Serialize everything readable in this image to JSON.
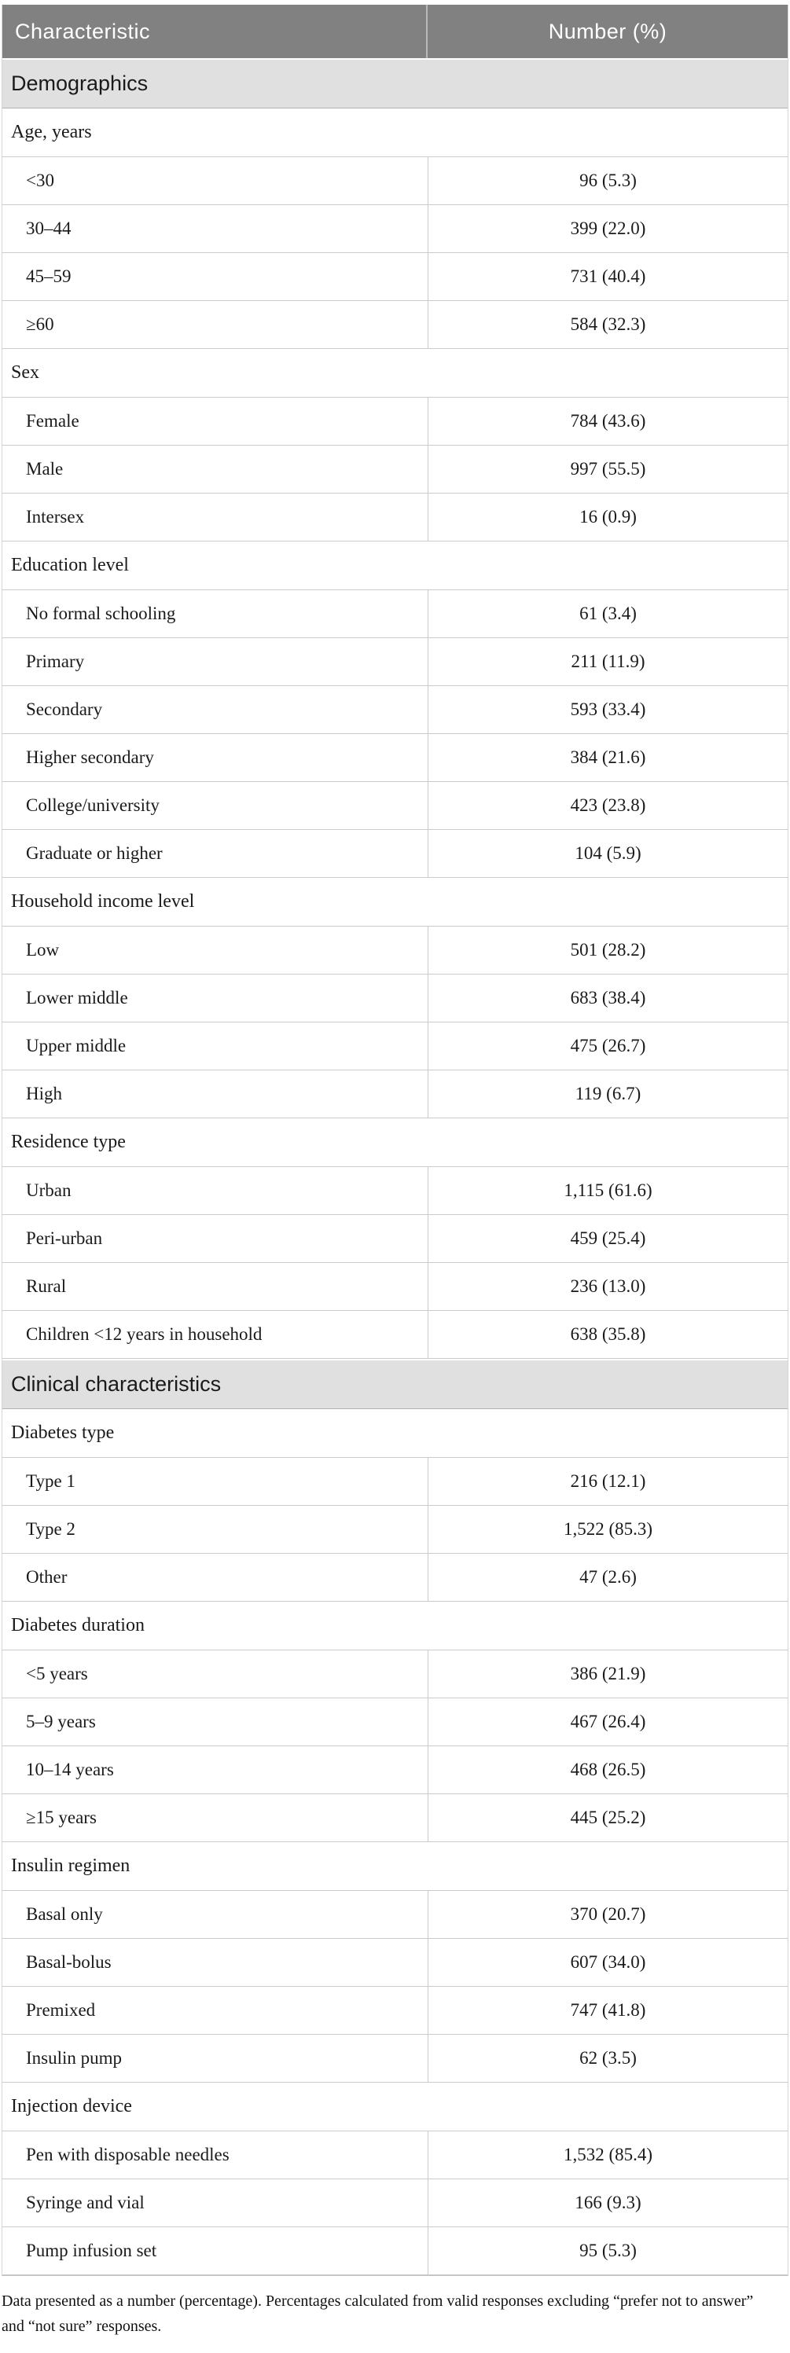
{
  "colors": {
    "header_bg": "#818181",
    "header_text": "#ffffff",
    "section_bg": "#e0e0e0",
    "body_text": "#1a1a1a",
    "border": "#cbcbcb"
  },
  "table": {
    "columns": [
      "Characteristic",
      "Number (%)"
    ],
    "sections": [
      {
        "title": "Demographics",
        "groups": [
          {
            "label": "Age, years",
            "rows": [
              {
                "label": "<30",
                "value": "96 (5.3)"
              },
              {
                "label": "30–44",
                "value": "399 (22.0)"
              },
              {
                "label": "45–59",
                "value": "731 (40.4)"
              },
              {
                "label": "≥60",
                "value": "584 (32.3)"
              }
            ]
          },
          {
            "label": "Sex",
            "rows": [
              {
                "label": "Female",
                "value": "784 (43.6)"
              },
              {
                "label": "Male",
                "value": "997 (55.5)"
              },
              {
                "label": "Intersex",
                "value": "16 (0.9)"
              }
            ]
          },
          {
            "label": "Education level",
            "rows": [
              {
                "label": "No formal schooling",
                "value": "61 (3.4)"
              },
              {
                "label": "Primary",
                "value": "211 (11.9)"
              },
              {
                "label": "Secondary",
                "value": "593 (33.4)"
              },
              {
                "label": "Higher secondary",
                "value": "384 (21.6)"
              },
              {
                "label": "College/university",
                "value": "423 (23.8)"
              },
              {
                "label": "Graduate or higher",
                "value": "104 (5.9)"
              }
            ]
          },
          {
            "label": "Household income level",
            "rows": [
              {
                "label": "Low",
                "value": "501 (28.2)"
              },
              {
                "label": "Lower middle",
                "value": "683 (38.4)"
              },
              {
                "label": "Upper middle",
                "value": "475 (26.7)"
              },
              {
                "label": "High",
                "value": "119 (6.7)"
              }
            ]
          },
          {
            "label": "Residence type",
            "rows": [
              {
                "label": "Urban",
                "value": "1,115 (61.6)"
              },
              {
                "label": "Peri-urban",
                "value": "459 (25.4)"
              },
              {
                "label": "Rural",
                "value": "236 (13.0)"
              },
              {
                "label": "Children <12 years in household",
                "value": "638 (35.8)"
              }
            ]
          }
        ]
      },
      {
        "title": "Clinical characteristics",
        "groups": [
          {
            "label": "Diabetes type",
            "rows": [
              {
                "label": "Type 1",
                "value": "216 (12.1)"
              },
              {
                "label": "Type 2",
                "value": "1,522 (85.3)"
              },
              {
                "label": "Other",
                "value": "47 (2.6)"
              }
            ]
          },
          {
            "label": "Diabetes duration",
            "rows": [
              {
                "label": "<5 years",
                "value": "386 (21.9)"
              },
              {
                "label": "5–9 years",
                "value": "467 (26.4)"
              },
              {
                "label": "10–14 years",
                "value": "468 (26.5)"
              },
              {
                "label": "≥15 years",
                "value": "445 (25.2)"
              }
            ]
          },
          {
            "label": "Insulin regimen",
            "rows": [
              {
                "label": "Basal only",
                "value": "370 (20.7)"
              },
              {
                "label": "Basal-bolus",
                "value": "607 (34.0)"
              },
              {
                "label": "Premixed",
                "value": "747 (41.8)"
              },
              {
                "label": "Insulin pump",
                "value": "62 (3.5)"
              }
            ]
          },
          {
            "label": "Injection device",
            "rows": [
              {
                "label": "Pen with disposable needles",
                "value": "1,532 (85.4)"
              },
              {
                "label": "Syringe and vial",
                "value": "166 (9.3)"
              },
              {
                "label": "Pump infusion set",
                "value": "95 (5.3)"
              }
            ]
          }
        ]
      }
    ],
    "footnote": "Data presented as a number (percentage). Percentages calculated from valid responses excluding “prefer not to answer” and “not sure” responses."
  }
}
